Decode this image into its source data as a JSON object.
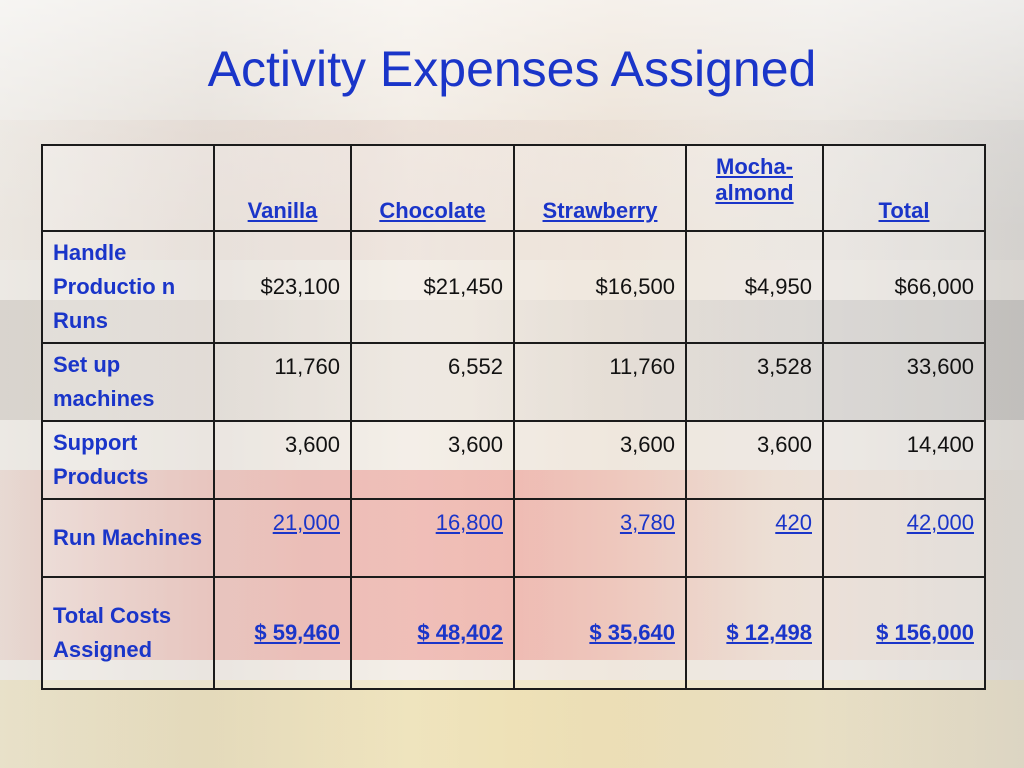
{
  "title": "Activity Expenses Assigned",
  "table": {
    "columns": [
      "",
      "Vanilla",
      "Chocolate",
      "Strawberry",
      "Mocha-almond",
      "Total"
    ],
    "rows": [
      {
        "label": "Handle Productio n Runs",
        "values": [
          "$23,100",
          "$21,450",
          "$16,500",
          "$4,950",
          "$66,000"
        ]
      },
      {
        "label": "Set up machines",
        "values": [
          "11,760",
          "6,552",
          "11,760",
          "3,528",
          "33,600"
        ]
      },
      {
        "label": "Support Products",
        "values": [
          "3,600",
          "3,600",
          "3,600",
          "3,600",
          "14,400"
        ]
      },
      {
        "label": "Run Machines",
        "values": [
          "21,000",
          "16,800",
          "3,780",
          "420",
          "42,000"
        ]
      },
      {
        "label": "Total Costs Assigned",
        "values": [
          "$ 59,460",
          "$ 48,402",
          "$ 35,640",
          "$ 12,498",
          "$ 156,000"
        ]
      }
    ]
  }
}
